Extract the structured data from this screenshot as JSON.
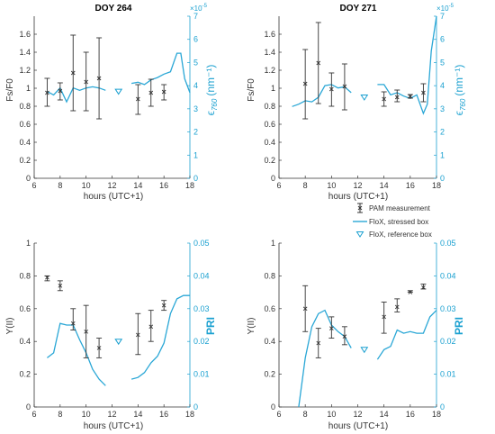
{
  "colors": {
    "axis_left": "#333333",
    "axis_right": "#1aa0d0",
    "pam": "#333333",
    "stressed": "#2aa7d6",
    "reference": "#1aa0d0"
  },
  "legend": {
    "items": [
      {
        "label": "PAM measurement",
        "marker": "errorbar-x"
      },
      {
        "label": "FloX, stressed box",
        "marker": "line"
      },
      {
        "label": "FloX, reference box",
        "marker": "triangle-down"
      }
    ]
  },
  "chart_data": [
    {
      "type": "line",
      "title": "DOY 264",
      "xlabel": "hours (UTC+1)",
      "ylabel": "Fs/F0",
      "ylabel_right": "ϵ760 (nm⁻¹)",
      "right_ylabel_main": "ϵ",
      "right_ylabel_sub": "760",
      "right_ylabel_unit": "(nm⁻¹)",
      "right_scale_label": "×10⁻⁵",
      "right_scale_base": "×10",
      "right_scale_exp": "-5",
      "xlim": [
        6,
        18
      ],
      "xticks": [
        "6",
        "8",
        "10",
        "12",
        "14",
        "16",
        "18"
      ],
      "ylim": [
        0,
        1.8
      ],
      "yticks": [
        "0",
        "0.2",
        "0.4",
        "0.6",
        "0.8",
        "1",
        "1.2",
        "1.4",
        "1.6"
      ],
      "ylim_right": [
        0,
        7
      ],
      "yticks_right": [
        "0",
        "1",
        "2",
        "3",
        "4",
        "5",
        "6",
        "7"
      ],
      "pam": [
        {
          "x": 7,
          "y": 0.95,
          "low": 0.8,
          "high": 1.11
        },
        {
          "x": 8,
          "y": 0.97,
          "low": 0.87,
          "high": 1.06
        },
        {
          "x": 9,
          "y": 1.17,
          "low": 0.75,
          "high": 1.59
        },
        {
          "x": 10,
          "y": 1.07,
          "low": 0.75,
          "high": 1.4
        },
        {
          "x": 11,
          "y": 1.11,
          "low": 0.66,
          "high": 1.56
        },
        {
          "x": 14,
          "y": 0.88,
          "low": 0.71,
          "high": 1.04
        },
        {
          "x": 15,
          "y": 0.95,
          "low": 0.8,
          "high": 1.1
        },
        {
          "x": 16,
          "y": 0.96,
          "low": 0.87,
          "high": 1.04
        }
      ],
      "stressed_segments": [
        [
          [
            7,
            3.75
          ],
          [
            7.5,
            3.6
          ],
          [
            8,
            3.9
          ],
          [
            8.5,
            3.3
          ],
          [
            9,
            3.9
          ],
          [
            9.5,
            3.8
          ],
          [
            10,
            3.9
          ],
          [
            10.5,
            3.95
          ],
          [
            11,
            3.9
          ],
          [
            11.5,
            3.8
          ]
        ],
        [
          [
            13.5,
            4.1
          ],
          [
            14,
            4.15
          ],
          [
            14.5,
            4.05
          ],
          [
            15,
            4.25
          ],
          [
            15.5,
            4.35
          ],
          [
            16,
            4.5
          ],
          [
            16.5,
            4.6
          ],
          [
            17,
            5.4
          ],
          [
            17.3,
            5.4
          ],
          [
            17.6,
            4.3
          ],
          [
            18,
            3.7
          ]
        ]
      ],
      "reference": [
        {
          "x": 12.5,
          "y": 3.75
        }
      ]
    },
    {
      "type": "line",
      "title": "DOY 271",
      "xlabel": "hours (UTC+1)",
      "ylabel": "Fs/F0",
      "ylabel_right": "ϵ760 (nm⁻¹)",
      "right_ylabel_main": "ϵ",
      "right_ylabel_sub": "760",
      "right_ylabel_unit": "(nm⁻¹)",
      "right_scale_label": "×10⁻⁵",
      "right_scale_base": "×10",
      "right_scale_exp": "-5",
      "xlim": [
        6,
        18
      ],
      "xticks": [
        "6",
        "8",
        "10",
        "12",
        "14",
        "16",
        "18"
      ],
      "ylim": [
        0,
        1.8
      ],
      "yticks": [
        "0",
        "0.2",
        "0.4",
        "0.6",
        "0.8",
        "1",
        "1.2",
        "1.4",
        "1.6"
      ],
      "ylim_right": [
        0,
        7
      ],
      "yticks_right": [
        "0",
        "1",
        "2",
        "3",
        "4",
        "5",
        "6",
        "7"
      ],
      "pam": [
        {
          "x": 8,
          "y": 1.05,
          "low": 0.66,
          "high": 1.43
        },
        {
          "x": 9,
          "y": 1.28,
          "low": 0.83,
          "high": 1.73
        },
        {
          "x": 10,
          "y": 0.99,
          "low": 0.8,
          "high": 1.17
        },
        {
          "x": 11,
          "y": 1.02,
          "low": 0.76,
          "high": 1.27
        },
        {
          "x": 14,
          "y": 0.88,
          "low": 0.8,
          "high": 0.96
        },
        {
          "x": 15,
          "y": 0.9,
          "low": 0.85,
          "high": 0.98
        },
        {
          "x": 16,
          "y": 0.91,
          "low": 0.89,
          "high": 0.93
        },
        {
          "x": 17,
          "y": 0.95,
          "low": 0.85,
          "high": 1.05
        }
      ],
      "stressed_segments": [
        [
          [
            7,
            3.1
          ],
          [
            7.5,
            3.2
          ],
          [
            8,
            3.35
          ],
          [
            8.5,
            3.3
          ],
          [
            9,
            3.5
          ],
          [
            9.5,
            4.0
          ],
          [
            10,
            4.05
          ],
          [
            10.5,
            3.9
          ],
          [
            11,
            3.95
          ],
          [
            11.5,
            3.7
          ]
        ],
        [
          [
            13.5,
            4.05
          ],
          [
            14,
            4.05
          ],
          [
            14.5,
            3.6
          ],
          [
            15,
            3.7
          ],
          [
            15.5,
            3.55
          ],
          [
            16,
            3.45
          ],
          [
            16.5,
            3.6
          ],
          [
            17,
            2.8
          ],
          [
            17.3,
            3.2
          ],
          [
            17.6,
            5.5
          ],
          [
            18,
            7.0
          ]
        ]
      ],
      "reference": [
        {
          "x": 12.5,
          "y": 3.5
        }
      ]
    },
    {
      "type": "line",
      "title": "",
      "xlabel": "hours (UTC+1)",
      "ylabel": "Y(II)",
      "ylabel_right": "PRI",
      "xlim": [
        6,
        18
      ],
      "xticks": [
        "6",
        "8",
        "10",
        "12",
        "14",
        "16",
        "18"
      ],
      "ylim": [
        0,
        1
      ],
      "yticks": [
        "0",
        "0.2",
        "0.4",
        "0.6",
        "0.8",
        "1"
      ],
      "ylim_right": [
        0,
        0.05
      ],
      "yticks_right": [
        "0",
        "0.01",
        "0.02",
        "0.03",
        "0.04",
        "0.05"
      ],
      "pam": [
        {
          "x": 7,
          "y": 0.79,
          "low": 0.77,
          "high": 0.8
        },
        {
          "x": 8,
          "y": 0.74,
          "low": 0.71,
          "high": 0.77
        },
        {
          "x": 9,
          "y": 0.51,
          "low": 0.47,
          "high": 0.6
        },
        {
          "x": 10,
          "y": 0.46,
          "low": 0.3,
          "high": 0.62
        },
        {
          "x": 11,
          "y": 0.36,
          "low": 0.3,
          "high": 0.42
        },
        {
          "x": 14,
          "y": 0.44,
          "low": 0.32,
          "high": 0.57
        },
        {
          "x": 15,
          "y": 0.49,
          "low": 0.4,
          "high": 0.59
        },
        {
          "x": 16,
          "y": 0.62,
          "low": 0.59,
          "high": 0.65
        }
      ],
      "stressed_segments": [
        [
          [
            7,
            0.015
          ],
          [
            7.5,
            0.0165
          ],
          [
            8,
            0.0255
          ],
          [
            8.5,
            0.025
          ],
          [
            9,
            0.025
          ],
          [
            9.5,
            0.0205
          ],
          [
            10,
            0.0165
          ],
          [
            10.5,
            0.0115
          ],
          [
            11,
            0.0085
          ],
          [
            11.5,
            0.0065
          ]
        ],
        [
          [
            13.5,
            0.0085
          ],
          [
            14,
            0.009
          ],
          [
            14.5,
            0.0105
          ],
          [
            15,
            0.0135
          ],
          [
            15.5,
            0.0155
          ],
          [
            16,
            0.0195
          ],
          [
            16.5,
            0.0285
          ],
          [
            17,
            0.033
          ],
          [
            17.5,
            0.034
          ],
          [
            18,
            0.034
          ]
        ]
      ],
      "reference": [
        {
          "x": 12.5,
          "y": 0.02
        }
      ]
    },
    {
      "type": "line",
      "title": "",
      "xlabel": "hours (UTC+1)",
      "ylabel": "Y(II)",
      "ylabel_right": "PRI",
      "xlim": [
        6,
        18
      ],
      "xticks": [
        "6",
        "8",
        "10",
        "12",
        "14",
        "16",
        "18"
      ],
      "ylim": [
        0,
        1
      ],
      "yticks": [
        "0",
        "0.2",
        "0.4",
        "0.6",
        "0.8",
        "1"
      ],
      "ylim_right": [
        0,
        0.05
      ],
      "yticks_right": [
        "0",
        "0.01",
        "0.02",
        "0.03",
        "0.04",
        "0.05"
      ],
      "pam": [
        {
          "x": 8,
          "y": 0.6,
          "low": 0.46,
          "high": 0.74
        },
        {
          "x": 9,
          "y": 0.39,
          "low": 0.3,
          "high": 0.48
        },
        {
          "x": 10,
          "y": 0.48,
          "low": 0.42,
          "high": 0.55
        },
        {
          "x": 11,
          "y": 0.43,
          "low": 0.38,
          "high": 0.49
        },
        {
          "x": 14,
          "y": 0.55,
          "low": 0.45,
          "high": 0.64
        },
        {
          "x": 15,
          "y": 0.61,
          "low": 0.58,
          "high": 0.66
        },
        {
          "x": 16,
          "y": 0.7,
          "low": 0.7,
          "high": 0.71
        },
        {
          "x": 17,
          "y": 0.73,
          "low": 0.72,
          "high": 0.75
        }
      ],
      "stressed_segments": [
        [
          [
            7.5,
            0.0
          ],
          [
            8,
            0.015
          ],
          [
            8.5,
            0.0245
          ],
          [
            9,
            0.0285
          ],
          [
            9.5,
            0.0295
          ],
          [
            10,
            0.025
          ],
          [
            10.5,
            0.023
          ],
          [
            11,
            0.0215
          ],
          [
            11.5,
            0.018
          ]
        ],
        [
          [
            13.5,
            0.0145
          ],
          [
            14,
            0.0175
          ],
          [
            14.5,
            0.0185
          ],
          [
            15,
            0.0235
          ],
          [
            15.5,
            0.0225
          ],
          [
            16,
            0.023
          ],
          [
            16.5,
            0.0225
          ],
          [
            17,
            0.0225
          ],
          [
            17.5,
            0.0275
          ],
          [
            18,
            0.0295
          ]
        ]
      ],
      "reference": [
        {
          "x": 12.5,
          "y": 0.0175
        }
      ]
    }
  ]
}
